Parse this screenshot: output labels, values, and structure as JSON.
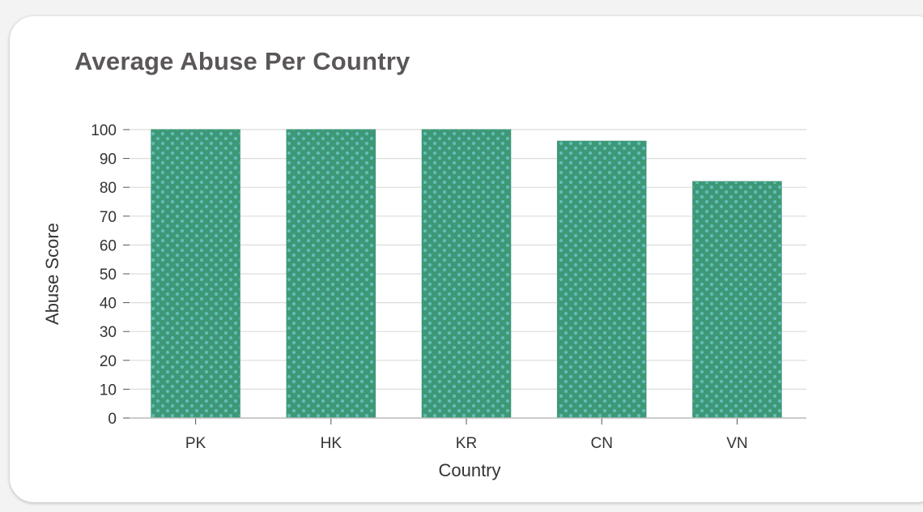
{
  "card": {
    "title": "Average Abuse Per Country"
  },
  "colors": {
    "bar_fill": "#3e9877",
    "bar_dots": "#5fbfb9",
    "grid": "#dcdcdc",
    "axis": "#555555"
  },
  "chart_data": {
    "type": "bar",
    "title": "Average Abuse Per Country",
    "xlabel": "Country",
    "ylabel": "Abuse Score",
    "categories": [
      "PK",
      "HK",
      "KR",
      "CN",
      "VN"
    ],
    "values": [
      100,
      100,
      100,
      96,
      82
    ],
    "ylim": [
      0,
      100
    ],
    "yticks": [
      0,
      10,
      20,
      30,
      40,
      50,
      60,
      70,
      80,
      90,
      100
    ],
    "grid": true,
    "legend": "none"
  }
}
